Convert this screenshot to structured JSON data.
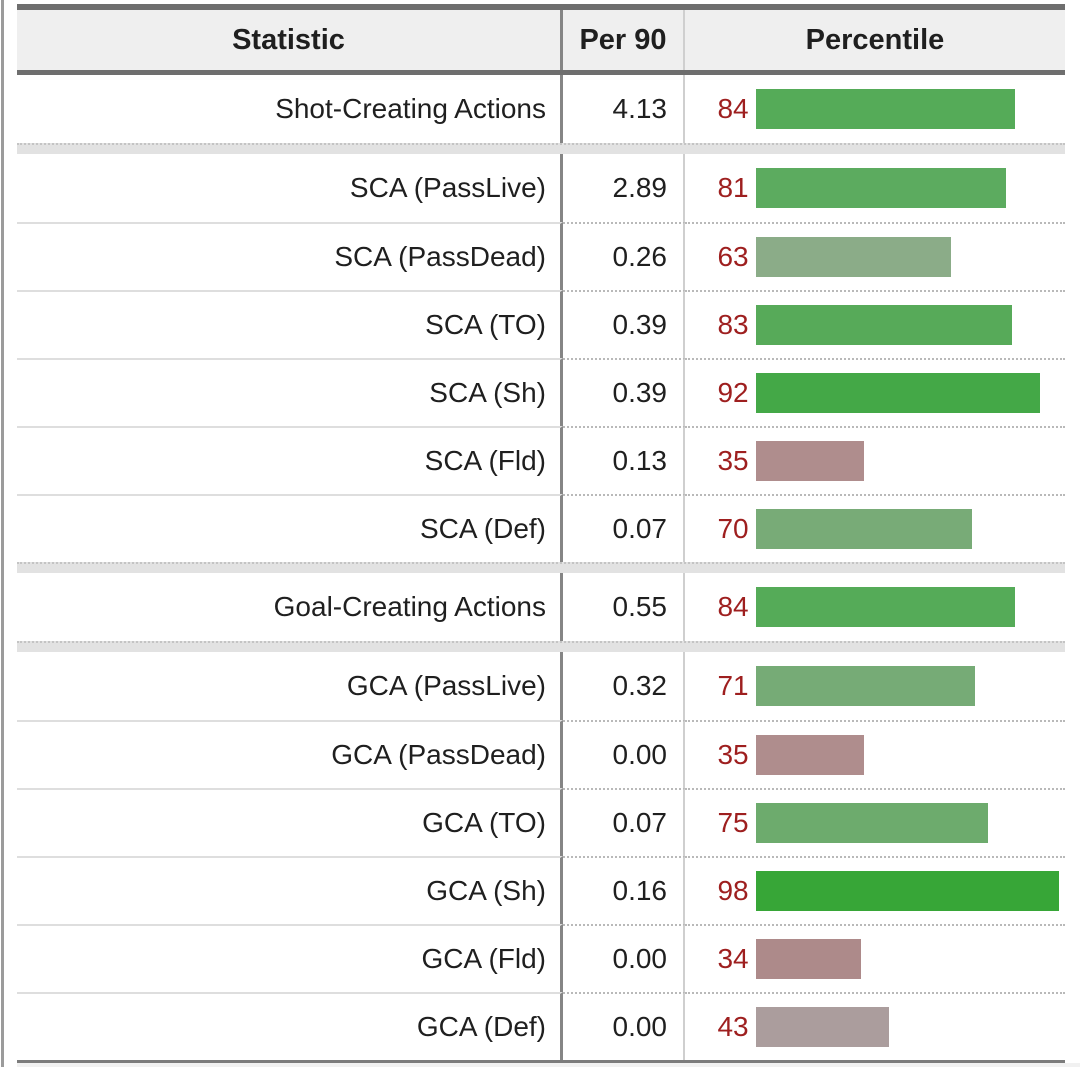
{
  "table": {
    "headers": {
      "statistic": "Statistic",
      "per90": "Per 90",
      "percentile": "Percentile"
    },
    "rows": [
      {
        "label": "Shot-Creating Actions",
        "per90": "4.13",
        "percentile": 84,
        "bar_color": "#55ab58"
      },
      {
        "label": "SCA (PassLive)",
        "per90": "2.89",
        "percentile": 81,
        "bar_color": "#5cab5f"
      },
      {
        "label": "SCA (PassDead)",
        "per90": "0.26",
        "percentile": 63,
        "bar_color": "#8bac88"
      },
      {
        "label": "SCA (TO)",
        "per90": "0.39",
        "percentile": 83,
        "bar_color": "#57aa59"
      },
      {
        "label": "SCA (Sh)",
        "per90": "0.39",
        "percentile": 92,
        "bar_color": "#44a847"
      },
      {
        "label": "SCA (Fld)",
        "per90": "0.13",
        "percentile": 35,
        "bar_color": "#af8d8d"
      },
      {
        "label": "SCA (Def)",
        "per90": "0.07",
        "percentile": 70,
        "bar_color": "#78ab77"
      },
      {
        "label": "Goal-Creating Actions",
        "per90": "0.55",
        "percentile": 84,
        "bar_color": "#55ab58"
      },
      {
        "label": "GCA (PassLive)",
        "per90": "0.32",
        "percentile": 71,
        "bar_color": "#76ab76"
      },
      {
        "label": "GCA (PassDead)",
        "per90": "0.00",
        "percentile": 35,
        "bar_color": "#af8d8d"
      },
      {
        "label": "GCA (TO)",
        "per90": "0.07",
        "percentile": 75,
        "bar_color": "#6dab6d"
      },
      {
        "label": "GCA (Sh)",
        "per90": "0.16",
        "percentile": 98,
        "bar_color": "#37a637"
      },
      {
        "label": "GCA (Fld)",
        "per90": "0.00",
        "percentile": 34,
        "bar_color": "#ad8a8a"
      },
      {
        "label": "GCA (Def)",
        "per90": "0.00",
        "percentile": 43,
        "bar_color": "#ab9d9d"
      }
    ]
  },
  "colors": {
    "header_bg": "#efefef",
    "table_border_dark": "#6e6e6e",
    "group_spacer": "#e2e2e2",
    "percentile_number": "#9e1f1f",
    "text": "#1f1f1f"
  },
  "chart_data": {
    "type": "bar",
    "title": "Percentile",
    "categories": [
      "Shot-Creating Actions",
      "SCA (PassLive)",
      "SCA (PassDead)",
      "SCA (TO)",
      "SCA (Sh)",
      "SCA (Fld)",
      "SCA (Def)",
      "Goal-Creating Actions",
      "GCA (PassLive)",
      "GCA (PassDead)",
      "GCA (TO)",
      "GCA (Sh)",
      "GCA (Fld)",
      "GCA (Def)"
    ],
    "series": [
      {
        "name": "Per 90",
        "values": [
          4.13,
          2.89,
          0.26,
          0.39,
          0.39,
          0.13,
          0.07,
          0.55,
          0.32,
          0.0,
          0.07,
          0.16,
          0.0,
          0.0
        ]
      },
      {
        "name": "Percentile",
        "values": [
          84,
          81,
          63,
          83,
          92,
          35,
          70,
          84,
          71,
          35,
          75,
          98,
          34,
          43
        ]
      }
    ],
    "xlim": [
      0,
      100
    ],
    "legend_position": "none",
    "grid": false
  }
}
